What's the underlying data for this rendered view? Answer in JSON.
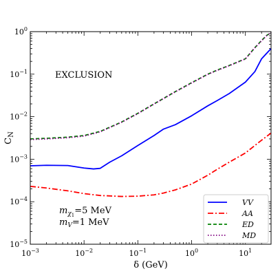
{
  "chart_data": {
    "type": "line",
    "xlabel": "δ (GeV)",
    "ylabel": "C_N",
    "xscale": "log",
    "yscale": "log",
    "xlim": [
      0.001,
      30
    ],
    "ylim": [
      1e-05,
      1
    ],
    "x_ticks": [
      {
        "value": 0.001,
        "base": "10",
        "exp": "−3"
      },
      {
        "value": 0.01,
        "base": "10",
        "exp": "−2"
      },
      {
        "value": 0.1,
        "base": "10",
        "exp": "−1"
      },
      {
        "value": 1,
        "base": "10",
        "exp": "0"
      },
      {
        "value": 10,
        "base": "10",
        "exp": "1"
      }
    ],
    "y_ticks": [
      {
        "value": 1e-05,
        "base": "10",
        "exp": "−5"
      },
      {
        "value": 0.0001,
        "base": "10",
        "exp": "−4"
      },
      {
        "value": 0.001,
        "base": "10",
        "exp": "−3"
      },
      {
        "value": 0.01,
        "base": "10",
        "exp": "−2"
      },
      {
        "value": 0.1,
        "base": "10",
        "exp": "−1"
      },
      {
        "value": 1,
        "base": "10",
        "exp": "0"
      }
    ],
    "annotations": {
      "region": "EXCLUSION",
      "mchi": {
        "symbol": "m",
        "sub": "χ",
        "subsub": "1",
        "value": "=5 MeV"
      },
      "mv": {
        "symbol": "m",
        "sub": "V",
        "value": "=1 MeV"
      }
    },
    "legend_position": "bottom-right",
    "series": [
      {
        "name": "VV",
        "color": "#0000ff",
        "dash": "solid",
        "x": [
          0.001,
          0.002,
          0.005,
          0.01,
          0.015,
          0.02,
          0.03,
          0.05,
          0.1,
          0.2,
          0.3,
          0.5,
          1,
          2,
          3,
          5,
          10,
          15,
          20,
          30
        ],
        "y": [
          0.0007,
          0.00072,
          0.00071,
          0.00062,
          0.00059,
          0.00061,
          0.00085,
          0.0012,
          0.0021,
          0.0036,
          0.0051,
          0.0065,
          0.0105,
          0.018,
          0.024,
          0.035,
          0.065,
          0.115,
          0.23,
          0.4
        ]
      },
      {
        "name": "AA",
        "color": "#ff0000",
        "dash": "dashdot",
        "x": [
          0.001,
          0.002,
          0.005,
          0.01,
          0.02,
          0.05,
          0.1,
          0.2,
          0.3,
          0.5,
          1,
          2,
          3,
          5,
          10,
          20,
          30
        ],
        "y": [
          0.00023,
          0.00021,
          0.00018,
          0.000155,
          0.00014,
          0.000133,
          0.000135,
          0.000145,
          0.00016,
          0.00019,
          0.00026,
          0.00042,
          0.00058,
          0.00085,
          0.0014,
          0.0028,
          0.0041
        ]
      },
      {
        "name": "ED",
        "color": "#008000",
        "dash": "dashed",
        "x": [
          0.001,
          0.002,
          0.005,
          0.01,
          0.02,
          0.05,
          0.1,
          0.2,
          0.5,
          1,
          2,
          3,
          5,
          10,
          15,
          20,
          25,
          30
        ],
        "y": [
          0.003,
          0.0031,
          0.0033,
          0.0036,
          0.0045,
          0.0075,
          0.012,
          0.02,
          0.039,
          0.063,
          0.1,
          0.125,
          0.16,
          0.23,
          0.42,
          0.62,
          0.82,
          0.95
        ]
      },
      {
        "name": "MD",
        "color": "#800080",
        "dash": "dotted",
        "x": [
          0.001,
          0.002,
          0.005,
          0.01,
          0.02,
          0.05,
          0.1,
          0.2,
          0.5,
          1,
          2,
          3,
          5,
          10,
          15,
          20,
          25,
          30
        ],
        "y": [
          0.0029,
          0.003,
          0.0032,
          0.0035,
          0.0044,
          0.0074,
          0.0118,
          0.0198,
          0.0385,
          0.062,
          0.099,
          0.123,
          0.158,
          0.228,
          0.415,
          0.61,
          0.81,
          0.94
        ]
      }
    ]
  }
}
